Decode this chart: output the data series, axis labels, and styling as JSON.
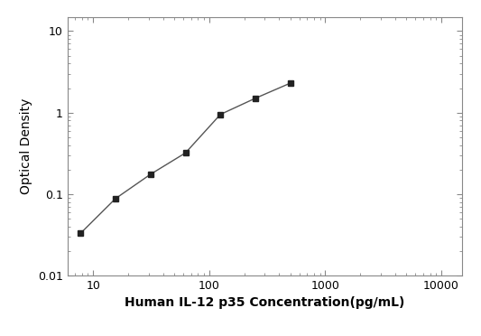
{
  "x": [
    7.8,
    15.6,
    31.25,
    62.5,
    125,
    250,
    500
  ],
  "y": [
    0.033,
    0.088,
    0.175,
    0.32,
    0.95,
    1.5,
    2.3
  ],
  "xlabel": "Human IL-12 p35 Concentration(pg/mL)",
  "ylabel": "Optical Density",
  "xlim": [
    6,
    15000
  ],
  "ylim": [
    0.01,
    15
  ],
  "marker": "s",
  "marker_color": "#222222",
  "line_color": "#555555",
  "marker_size": 4.5,
  "line_width": 1.0,
  "xlabel_fontsize": 10,
  "ylabel_fontsize": 10,
  "tick_fontsize": 9,
  "background_color": "#ffffff",
  "fig_width": 5.33,
  "fig_height": 3.72,
  "dpi": 100
}
